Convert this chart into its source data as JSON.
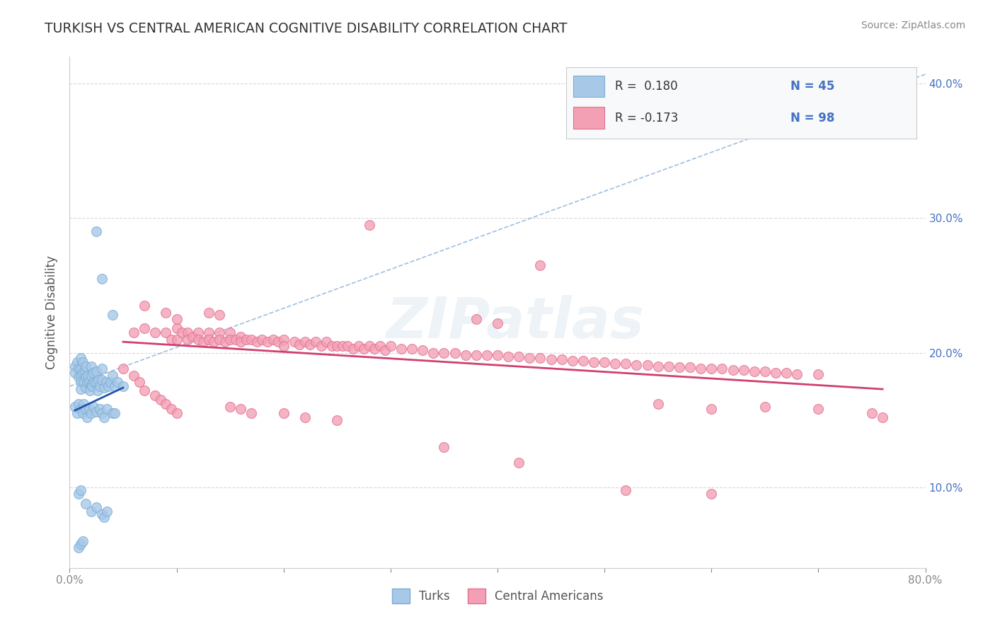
{
  "title": "TURKISH VS CENTRAL AMERICAN COGNITIVE DISABILITY CORRELATION CHART",
  "source": "Source: ZipAtlas.com",
  "ylabel": "Cognitive Disability",
  "x_min": 0.0,
  "x_max": 0.8,
  "y_min": 0.04,
  "y_max": 0.42,
  "y_ticks": [
    0.1,
    0.2,
    0.3,
    0.4
  ],
  "y_tick_labels": [
    "10.0%",
    "20.0%",
    "30.0%",
    "40.0%"
  ],
  "watermark": "ZIPatlas",
  "background_color": "#ffffff",
  "grid_color": "#d0d0d0",
  "turks_color": "#a8c8e8",
  "turks_edge_color": "#7aadd4",
  "central_americans_color": "#f4a0b4",
  "central_americans_edge_color": "#e07090",
  "turks_scatter": [
    [
      0.005,
      0.19
    ],
    [
      0.005,
      0.185
    ],
    [
      0.007,
      0.193
    ],
    [
      0.008,
      0.188
    ],
    [
      0.008,
      0.182
    ],
    [
      0.01,
      0.196
    ],
    [
      0.01,
      0.188
    ],
    [
      0.01,
      0.183
    ],
    [
      0.01,
      0.178
    ],
    [
      0.01,
      0.173
    ],
    [
      0.012,
      0.193
    ],
    [
      0.012,
      0.185
    ],
    [
      0.013,
      0.178
    ],
    [
      0.014,
      0.185
    ],
    [
      0.015,
      0.19
    ],
    [
      0.015,
      0.182
    ],
    [
      0.015,
      0.174
    ],
    [
      0.016,
      0.178
    ],
    [
      0.017,
      0.183
    ],
    [
      0.018,
      0.178
    ],
    [
      0.019,
      0.172
    ],
    [
      0.02,
      0.19
    ],
    [
      0.02,
      0.183
    ],
    [
      0.02,
      0.176
    ],
    [
      0.021,
      0.175
    ],
    [
      0.022,
      0.185
    ],
    [
      0.023,
      0.178
    ],
    [
      0.025,
      0.186
    ],
    [
      0.025,
      0.178
    ],
    [
      0.026,
      0.172
    ],
    [
      0.027,
      0.18
    ],
    [
      0.028,
      0.175
    ],
    [
      0.03,
      0.188
    ],
    [
      0.03,
      0.18
    ],
    [
      0.032,
      0.174
    ],
    [
      0.034,
      0.178
    ],
    [
      0.036,
      0.175
    ],
    [
      0.038,
      0.178
    ],
    [
      0.04,
      0.183
    ],
    [
      0.042,
      0.175
    ],
    [
      0.045,
      0.178
    ],
    [
      0.05,
      0.175
    ],
    [
      0.025,
      0.29
    ],
    [
      0.03,
      0.255
    ],
    [
      0.04,
      0.228
    ],
    [
      0.005,
      0.16
    ],
    [
      0.007,
      0.155
    ],
    [
      0.008,
      0.162
    ],
    [
      0.01,
      0.158
    ],
    [
      0.012,
      0.155
    ],
    [
      0.013,
      0.162
    ],
    [
      0.015,
      0.158
    ],
    [
      0.016,
      0.152
    ],
    [
      0.018,
      0.158
    ],
    [
      0.02,
      0.155
    ],
    [
      0.022,
      0.16
    ],
    [
      0.025,
      0.156
    ],
    [
      0.028,
      0.158
    ],
    [
      0.03,
      0.155
    ],
    [
      0.032,
      0.152
    ],
    [
      0.035,
      0.158
    ],
    [
      0.04,
      0.155
    ],
    [
      0.042,
      0.155
    ],
    [
      0.015,
      0.088
    ],
    [
      0.02,
      0.082
    ],
    [
      0.025,
      0.085
    ],
    [
      0.03,
      0.08
    ],
    [
      0.032,
      0.078
    ],
    [
      0.035,
      0.082
    ],
    [
      0.008,
      0.055
    ],
    [
      0.01,
      0.058
    ],
    [
      0.012,
      0.06
    ],
    [
      0.008,
      0.095
    ],
    [
      0.01,
      0.098
    ]
  ],
  "central_americans_scatter": [
    [
      0.06,
      0.215
    ],
    [
      0.07,
      0.218
    ],
    [
      0.08,
      0.215
    ],
    [
      0.09,
      0.215
    ],
    [
      0.095,
      0.21
    ],
    [
      0.1,
      0.218
    ],
    [
      0.1,
      0.21
    ],
    [
      0.105,
      0.215
    ],
    [
      0.11,
      0.215
    ],
    [
      0.11,
      0.21
    ],
    [
      0.115,
      0.212
    ],
    [
      0.12,
      0.215
    ],
    [
      0.12,
      0.21
    ],
    [
      0.125,
      0.208
    ],
    [
      0.13,
      0.215
    ],
    [
      0.13,
      0.21
    ],
    [
      0.135,
      0.208
    ],
    [
      0.14,
      0.215
    ],
    [
      0.14,
      0.21
    ],
    [
      0.145,
      0.208
    ],
    [
      0.15,
      0.215
    ],
    [
      0.15,
      0.21
    ],
    [
      0.155,
      0.21
    ],
    [
      0.16,
      0.212
    ],
    [
      0.16,
      0.208
    ],
    [
      0.165,
      0.21
    ],
    [
      0.17,
      0.21
    ],
    [
      0.175,
      0.208
    ],
    [
      0.18,
      0.21
    ],
    [
      0.185,
      0.208
    ],
    [
      0.19,
      0.21
    ],
    [
      0.195,
      0.208
    ],
    [
      0.2,
      0.21
    ],
    [
      0.2,
      0.205
    ],
    [
      0.21,
      0.208
    ],
    [
      0.215,
      0.206
    ],
    [
      0.22,
      0.208
    ],
    [
      0.225,
      0.206
    ],
    [
      0.23,
      0.208
    ],
    [
      0.235,
      0.205
    ],
    [
      0.24,
      0.208
    ],
    [
      0.245,
      0.205
    ],
    [
      0.25,
      0.205
    ],
    [
      0.255,
      0.205
    ],
    [
      0.26,
      0.205
    ],
    [
      0.265,
      0.203
    ],
    [
      0.27,
      0.205
    ],
    [
      0.275,
      0.203
    ],
    [
      0.28,
      0.205
    ],
    [
      0.285,
      0.203
    ],
    [
      0.29,
      0.205
    ],
    [
      0.295,
      0.202
    ],
    [
      0.3,
      0.205
    ],
    [
      0.31,
      0.203
    ],
    [
      0.32,
      0.203
    ],
    [
      0.33,
      0.202
    ],
    [
      0.34,
      0.2
    ],
    [
      0.35,
      0.2
    ],
    [
      0.36,
      0.2
    ],
    [
      0.37,
      0.198
    ],
    [
      0.38,
      0.198
    ],
    [
      0.39,
      0.198
    ],
    [
      0.4,
      0.198
    ],
    [
      0.41,
      0.197
    ],
    [
      0.42,
      0.197
    ],
    [
      0.43,
      0.196
    ],
    [
      0.44,
      0.196
    ],
    [
      0.45,
      0.195
    ],
    [
      0.46,
      0.195
    ],
    [
      0.47,
      0.194
    ],
    [
      0.48,
      0.194
    ],
    [
      0.49,
      0.193
    ],
    [
      0.5,
      0.193
    ],
    [
      0.51,
      0.192
    ],
    [
      0.52,
      0.192
    ],
    [
      0.53,
      0.191
    ],
    [
      0.54,
      0.191
    ],
    [
      0.55,
      0.19
    ],
    [
      0.56,
      0.19
    ],
    [
      0.57,
      0.189
    ],
    [
      0.58,
      0.189
    ],
    [
      0.59,
      0.188
    ],
    [
      0.6,
      0.188
    ],
    [
      0.61,
      0.188
    ],
    [
      0.62,
      0.187
    ],
    [
      0.63,
      0.187
    ],
    [
      0.64,
      0.186
    ],
    [
      0.65,
      0.186
    ],
    [
      0.66,
      0.185
    ],
    [
      0.67,
      0.185
    ],
    [
      0.68,
      0.184
    ],
    [
      0.7,
      0.184
    ],
    [
      0.05,
      0.188
    ],
    [
      0.06,
      0.183
    ],
    [
      0.065,
      0.178
    ],
    [
      0.07,
      0.172
    ],
    [
      0.08,
      0.168
    ],
    [
      0.085,
      0.165
    ],
    [
      0.09,
      0.162
    ],
    [
      0.095,
      0.158
    ],
    [
      0.1,
      0.155
    ],
    [
      0.15,
      0.16
    ],
    [
      0.16,
      0.158
    ],
    [
      0.17,
      0.155
    ],
    [
      0.2,
      0.155
    ],
    [
      0.22,
      0.152
    ],
    [
      0.25,
      0.15
    ],
    [
      0.07,
      0.235
    ],
    [
      0.09,
      0.23
    ],
    [
      0.1,
      0.225
    ],
    [
      0.13,
      0.23
    ],
    [
      0.14,
      0.228
    ],
    [
      0.38,
      0.225
    ],
    [
      0.4,
      0.222
    ],
    [
      0.28,
      0.295
    ],
    [
      0.44,
      0.265
    ],
    [
      0.35,
      0.13
    ],
    [
      0.42,
      0.118
    ],
    [
      0.52,
      0.098
    ],
    [
      0.6,
      0.095
    ],
    [
      0.55,
      0.162
    ],
    [
      0.6,
      0.158
    ],
    [
      0.65,
      0.16
    ],
    [
      0.7,
      0.158
    ],
    [
      0.75,
      0.155
    ],
    [
      0.76,
      0.152
    ]
  ],
  "turks_line_color": "#2255aa",
  "central_americans_line_color": "#d04070",
  "trendline_dashed_color": "#90b8e0"
}
